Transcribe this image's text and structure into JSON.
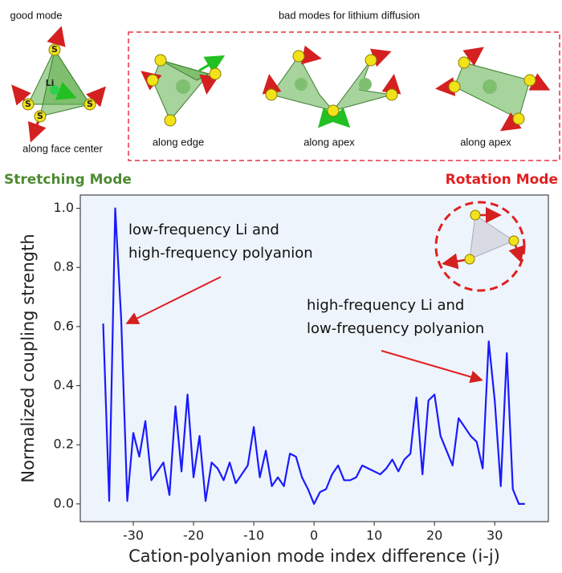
{
  "header": {
    "good_mode": "good mode",
    "bad_modes": "bad modes for lithium diffusion",
    "captions": [
      "along face center",
      "along edge",
      "along apex",
      "along apex"
    ],
    "atom_labels": [
      "S",
      "S",
      "S",
      "S",
      "Li"
    ],
    "stretching": "Stretching Mode",
    "rotation": "Rotation Mode"
  },
  "chart_data": {
    "type": "line",
    "xlabel": "Cation-polyanion mode index difference (i-j)",
    "ylabel": "Normalized coupling strength",
    "annotations": [
      {
        "lines": [
          "low-frequency Li and",
          "high-frequency polyanion"
        ]
      },
      {
        "lines": [
          "high-frequency Li and",
          "low-frequency polyanion"
        ]
      }
    ],
    "x": [
      -35,
      -34,
      -33,
      -32,
      -31,
      -30,
      -29,
      -28,
      -27,
      -26,
      -25,
      -24,
      -23,
      -22,
      -21,
      -20,
      -19,
      -18,
      -17,
      -16,
      -15,
      -14,
      -13,
      -12,
      -11,
      -10,
      -9,
      -8,
      -7,
      -6,
      -5,
      -4,
      -3,
      -2,
      -1,
      0,
      1,
      2,
      3,
      4,
      5,
      6,
      7,
      8,
      9,
      10,
      11,
      12,
      13,
      14,
      15,
      16,
      17,
      18,
      19,
      20,
      21,
      22,
      23,
      24,
      25,
      26,
      27,
      28,
      29,
      30,
      31,
      32,
      33,
      34,
      35
    ],
    "series": [
      {
        "color": "#1a1aff",
        "values": [
          0.61,
          0.01,
          1.0,
          0.62,
          0.01,
          0.24,
          0.16,
          0.28,
          0.08,
          0.11,
          0.14,
          0.03,
          0.33,
          0.11,
          0.37,
          0.09,
          0.23,
          0.01,
          0.14,
          0.12,
          0.08,
          0.14,
          0.07,
          0.1,
          0.13,
          0.26,
          0.09,
          0.18,
          0.06,
          0.09,
          0.06,
          0.17,
          0.16,
          0.09,
          0.05,
          0.0,
          0.04,
          0.05,
          0.1,
          0.13,
          0.08,
          0.08,
          0.09,
          0.13,
          0.12,
          0.11,
          0.1,
          0.12,
          0.15,
          0.11,
          0.15,
          0.17,
          0.36,
          0.1,
          0.35,
          0.37,
          0.23,
          0.18,
          0.13,
          0.29,
          0.26,
          0.23,
          0.21,
          0.12,
          0.55,
          0.35,
          0.06,
          0.51,
          0.05,
          0.0,
          0.0
        ]
      }
    ],
    "xlim": [
      -38.8,
      38.9
    ],
    "ylim": [
      -0.06,
      1.045
    ],
    "xticks": [
      -30,
      -20,
      -10,
      0,
      10,
      20,
      30
    ],
    "yticks": [
      {
        "value": 0,
        "label": "0.0"
      },
      0.2,
      0.4,
      0.6,
      0.8,
      {
        "value": 1,
        "label": "1.0"
      }
    ],
    "background": "#eef4fb"
  }
}
